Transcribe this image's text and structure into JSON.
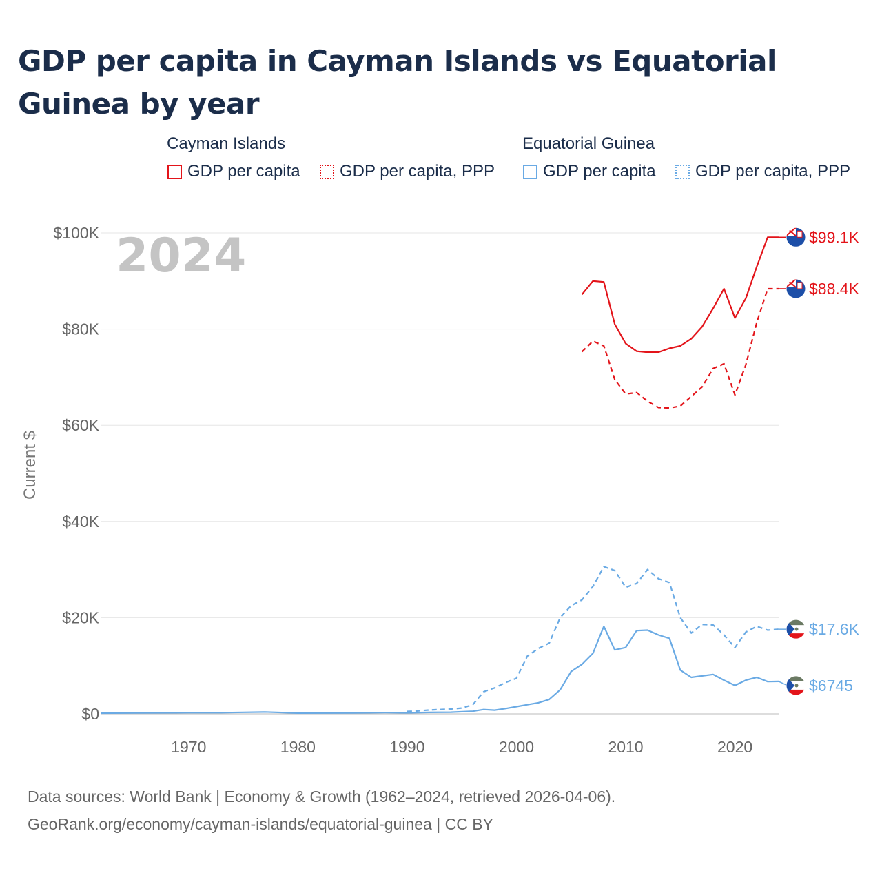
{
  "title": "GDP per capita in Cayman Islands vs Equatorial Guinea by year",
  "legend": {
    "groups": [
      {
        "name": "Cayman Islands",
        "items": [
          "GDP per capita",
          "GDP per capita, PPP"
        ],
        "color": "#e3141a"
      },
      {
        "name": "Equatorial Guinea",
        "items": [
          "GDP per capita",
          "GDP per capita, PPP"
        ],
        "color": "#6aaae4"
      }
    ]
  },
  "footer": {
    "line1": "Data sources: World Bank | Economy & Growth (1962–2024, retrieved 2026-04-06).",
    "line2": "GeoRank.org/economy/cayman-islands/equatorial-guinea | CC BY"
  },
  "chart_data": {
    "type": "line",
    "title": "GDP per capita in Cayman Islands vs Equatorial Guinea by year",
    "xlabel": "",
    "ylabel": "Current $",
    "xlim": [
      1962,
      2024
    ],
    "ylim": [
      0,
      100000
    ],
    "y_ticks": [
      0,
      20000,
      40000,
      60000,
      80000,
      100000
    ],
    "y_tick_labels": [
      "$0",
      "$20K",
      "$40K",
      "$60K",
      "$80K",
      "$100K"
    ],
    "x_ticks": [
      1970,
      1980,
      1990,
      2000,
      2010,
      2020
    ],
    "x_tick_labels": [
      "1970",
      "1980",
      "1990",
      "2000",
      "2010",
      "2020"
    ],
    "year_label": "2024",
    "series": [
      {
        "name": "Cayman Islands GDP per capita",
        "color": "#e3141a",
        "dash": "solid",
        "end_label": "$99.1K",
        "x": [
          2006,
          2007,
          2008,
          2009,
          2010,
          2011,
          2012,
          2013,
          2014,
          2015,
          2016,
          2017,
          2018,
          2019,
          2020,
          2021,
          2022,
          2023,
          2024
        ],
        "y": [
          87200,
          90000,
          89800,
          81000,
          77000,
          75400,
          75200,
          75200,
          76000,
          76500,
          78000,
          80500,
          84300,
          88400,
          82300,
          86400,
          93000,
          99100,
          99100
        ]
      },
      {
        "name": "Cayman Islands GDP per capita, PPP",
        "color": "#e3141a",
        "dash": "dashed",
        "end_label": "$88.4K",
        "x": [
          2006,
          2007,
          2008,
          2009,
          2010,
          2011,
          2012,
          2013,
          2014,
          2015,
          2016,
          2017,
          2018,
          2019,
          2020,
          2021,
          2022,
          2023,
          2024
        ],
        "y": [
          75300,
          77500,
          76500,
          69500,
          66500,
          66800,
          65000,
          63700,
          63600,
          64000,
          66000,
          68000,
          71800,
          72800,
          66300,
          72600,
          81400,
          88400,
          88400
        ]
      },
      {
        "name": "Equatorial Guinea GDP per capita",
        "color": "#6aaae4",
        "dash": "solid",
        "end_label": "$6745",
        "x": [
          1962,
          1965,
          1970,
          1973,
          1975,
          1977,
          1980,
          1985,
          1988,
          1990,
          1992,
          1994,
          1996,
          1997,
          1998,
          1999,
          2000,
          2001,
          2002,
          2003,
          2004,
          2005,
          2006,
          2007,
          2008,
          2009,
          2010,
          2011,
          2012,
          2013,
          2014,
          2015,
          2016,
          2017,
          2018,
          2019,
          2020,
          2021,
          2022,
          2023,
          2024
        ],
        "y": [
          150,
          200,
          240,
          250,
          320,
          380,
          160,
          180,
          260,
          220,
          300,
          350,
          550,
          900,
          780,
          1100,
          1500,
          1900,
          2300,
          3000,
          5000,
          8800,
          10300,
          12600,
          18200,
          13300,
          13800,
          17300,
          17400,
          16400,
          15700,
          9100,
          7600,
          7900,
          8200,
          7000,
          5900,
          7000,
          7600,
          6700,
          6745
        ]
      },
      {
        "name": "Equatorial Guinea GDP per capita, PPP",
        "color": "#6aaae4",
        "dash": "dashed",
        "end_label": "$17.6K",
        "x": [
          1990,
          1991,
          1992,
          1993,
          1994,
          1995,
          1996,
          1997,
          1998,
          1999,
          2000,
          2001,
          2002,
          2003,
          2004,
          2005,
          2006,
          2007,
          2008,
          2009,
          2010,
          2011,
          2012,
          2013,
          2014,
          2015,
          2016,
          2017,
          2018,
          2019,
          2020,
          2021,
          2022,
          2023,
          2024
        ],
        "y": [
          500,
          600,
          800,
          900,
          1000,
          1200,
          1900,
          4600,
          5400,
          6500,
          7400,
          12000,
          13600,
          14700,
          20000,
          22500,
          23700,
          26500,
          30600,
          29800,
          26300,
          27100,
          30000,
          28100,
          27300,
          20000,
          16800,
          18600,
          18500,
          16400,
          13800,
          17000,
          18200,
          17400,
          17600
        ]
      }
    ]
  }
}
